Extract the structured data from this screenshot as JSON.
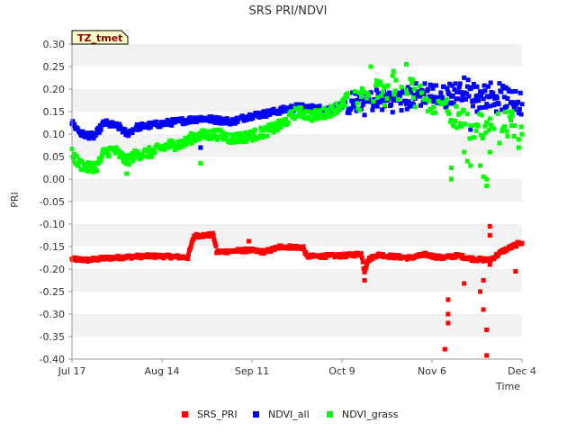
{
  "chart_data": {
    "type": "scatter",
    "title": "SRS PRI/NDVI",
    "badge": "TZ_tmet",
    "xlabel": "Time",
    "ylabel": "PRI",
    "x_unit": "day offset from Jul 17",
    "xlim": [
      0,
      140
    ],
    "ylim": [
      -0.4,
      0.3
    ],
    "grid": "horizontal bands",
    "y_ticks": [
      "0.30",
      "0.25",
      "0.20",
      "0.15",
      "0.10",
      "0.05",
      "0.00",
      "-0.05",
      "-0.10",
      "-0.15",
      "-0.20",
      "-0.25",
      "-0.30",
      "-0.35",
      "-0.40"
    ],
    "x_ticks": [
      {
        "label": "Jul 17",
        "day": 0
      },
      {
        "label": "Aug 14",
        "day": 28
      },
      {
        "label": "Sep 11",
        "day": 56
      },
      {
        "label": "Oct 9",
        "day": 84
      },
      {
        "label": "Nov 6",
        "day": 112
      },
      {
        "label": "Dec 4",
        "day": 140
      }
    ],
    "legend_position": "bottom-center",
    "series": [
      {
        "name": "SRS_PRI",
        "color": "#ff0000",
        "trend": [
          [
            0,
            -0.178
          ],
          [
            5,
            -0.18
          ],
          [
            10,
            -0.176
          ],
          [
            15,
            -0.174
          ],
          [
            20,
            -0.172
          ],
          [
            25,
            -0.171
          ],
          [
            30,
            -0.172
          ],
          [
            36,
            -0.174
          ],
          [
            38,
            -0.126
          ],
          [
            44,
            -0.124
          ],
          [
            45,
            -0.162
          ],
          [
            55,
            -0.158
          ],
          [
            60,
            -0.162
          ],
          [
            65,
            -0.15
          ],
          [
            72,
            -0.152
          ],
          [
            73,
            -0.172
          ],
          [
            85,
            -0.17
          ],
          [
            90,
            -0.166
          ],
          [
            91,
            -0.205
          ],
          [
            92,
            -0.18
          ],
          [
            95,
            -0.168
          ],
          [
            100,
            -0.172
          ],
          [
            105,
            -0.175
          ],
          [
            110,
            -0.168
          ],
          [
            115,
            -0.175
          ],
          [
            120,
            -0.17
          ],
          [
            125,
            -0.178
          ],
          [
            130,
            -0.18
          ],
          [
            134,
            -0.16
          ],
          [
            140,
            -0.14
          ]
        ],
        "outliers": [
          [
            55,
            -0.138
          ],
          [
            91,
            -0.225
          ],
          [
            117,
            -0.268
          ],
          [
            117,
            -0.3
          ],
          [
            117,
            -0.32
          ],
          [
            116,
            -0.378
          ],
          [
            122,
            -0.232
          ],
          [
            127,
            -0.25
          ],
          [
            128,
            -0.29
          ],
          [
            129,
            -0.335
          ],
          [
            129,
            -0.392
          ],
          [
            130,
            -0.19
          ],
          [
            130,
            -0.105
          ],
          [
            130,
            -0.125
          ],
          [
            131,
            -0.175
          ],
          [
            128,
            -0.225
          ],
          [
            138,
            -0.205
          ],
          [
            136,
            -0.15
          ]
        ]
      },
      {
        "name": "NDVI_all",
        "color": "#0000ff",
        "trend": [
          [
            0,
            0.125
          ],
          [
            3,
            0.1
          ],
          [
            7,
            0.095
          ],
          [
            10,
            0.125
          ],
          [
            15,
            0.115
          ],
          [
            17,
            0.1
          ],
          [
            20,
            0.115
          ],
          [
            30,
            0.125
          ],
          [
            40,
            0.135
          ],
          [
            50,
            0.128
          ],
          [
            55,
            0.14
          ],
          [
            60,
            0.145
          ],
          [
            70,
            0.16
          ],
          [
            80,
            0.155
          ],
          [
            85,
            0.165
          ],
          [
            95,
            0.175
          ],
          [
            105,
            0.18
          ],
          [
            110,
            0.19
          ],
          [
            115,
            0.185
          ],
          [
            122,
            0.2
          ],
          [
            125,
            0.185
          ],
          [
            130,
            0.19
          ],
          [
            135,
            0.18
          ],
          [
            140,
            0.165
          ]
        ],
        "outliers": [
          [
            40,
            0.07
          ],
          [
            118,
            0.17
          ],
          [
            126,
            0.15
          ],
          [
            125,
            0.205
          ],
          [
            132,
            0.15
          ],
          [
            138,
            0.195
          ],
          [
            124,
            0.11
          ]
        ]
      },
      {
        "name": "NDVI_grass",
        "color": "#00ff00",
        "trend": [
          [
            0,
            0.055
          ],
          [
            2,
            0.035
          ],
          [
            5,
            0.025
          ],
          [
            8,
            0.03
          ],
          [
            10,
            0.06
          ],
          [
            13,
            0.065
          ],
          [
            17,
            0.04
          ],
          [
            20,
            0.055
          ],
          [
            25,
            0.06
          ],
          [
            30,
            0.075
          ],
          [
            35,
            0.08
          ],
          [
            38,
            0.095
          ],
          [
            45,
            0.1
          ],
          [
            50,
            0.09
          ],
          [
            55,
            0.095
          ],
          [
            60,
            0.105
          ],
          [
            65,
            0.12
          ],
          [
            70,
            0.15
          ],
          [
            75,
            0.14
          ],
          [
            80,
            0.15
          ],
          [
            85,
            0.17
          ],
          [
            90,
            0.18
          ],
          [
            95,
            0.19
          ],
          [
            100,
            0.2
          ],
          [
            105,
            0.2
          ],
          [
            110,
            0.175
          ],
          [
            115,
            0.16
          ],
          [
            120,
            0.13
          ],
          [
            125,
            0.11
          ],
          [
            130,
            0.12
          ],
          [
            135,
            0.13
          ],
          [
            140,
            0.1
          ]
        ],
        "outliers": [
          [
            17,
            0.012
          ],
          [
            40,
            0.035
          ],
          [
            118,
            0.025
          ],
          [
            118,
            0.0
          ],
          [
            122,
            0.06
          ],
          [
            123,
            0.04
          ],
          [
            124,
            0.03
          ],
          [
            127,
            0.03
          ],
          [
            128,
            0.005
          ],
          [
            129,
            0.0
          ],
          [
            129,
            -0.015
          ],
          [
            130,
            0.06
          ],
          [
            100,
            0.24
          ],
          [
            104,
            0.255
          ],
          [
            106,
            0.22
          ],
          [
            93,
            0.25
          ],
          [
            95,
            0.21
          ],
          [
            133,
            0.08
          ],
          [
            139,
            0.07
          ],
          [
            137,
            0.15
          ]
        ]
      }
    ]
  }
}
